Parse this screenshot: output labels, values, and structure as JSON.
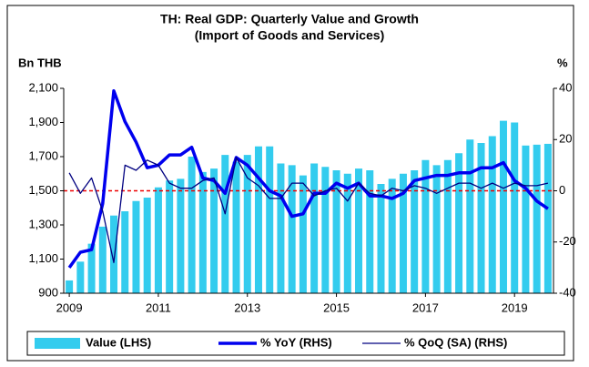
{
  "chart_data": {
    "type": "bar_line",
    "title": "TH: Real GDP: Quarterly Value and Growth",
    "subtitle": "(Import of Goods and Services)",
    "y_label": "Bn THB",
    "y2_label": "%",
    "categories": [
      "2009",
      null,
      null,
      null,
      null,
      null,
      null,
      null,
      "2011",
      null,
      null,
      null,
      null,
      null,
      null,
      null,
      "2013",
      null,
      null,
      null,
      null,
      null,
      null,
      null,
      "2015",
      null,
      null,
      null,
      null,
      null,
      null,
      null,
      "2017",
      null,
      null,
      null,
      null,
      null,
      null,
      null,
      "2019",
      null,
      null,
      null
    ],
    "series": [
      {
        "name": "Value (LHS)",
        "type": "bar",
        "color": "#33ccee",
        "values": [
          975,
          1085,
          1190,
          1290,
          1355,
          1380,
          1440,
          1460,
          1520,
          1560,
          1570,
          1700,
          1610,
          1630,
          1710,
          1670,
          1710,
          1760,
          1760,
          1660,
          1650,
          1590,
          1660,
          1640,
          1620,
          1600,
          1630,
          1620,
          1540,
          1570,
          1600,
          1620,
          1680,
          1650,
          1680,
          1720,
          1800,
          1780,
          1820,
          1910,
          1900,
          1765,
          1770,
          1775
        ]
      },
      {
        "name": "% YoY (RHS)",
        "type": "line",
        "axis": "y2",
        "color": "#0000ee",
        "width": 3.5,
        "values": [
          -30,
          -24,
          -23,
          -5,
          39,
          27,
          19,
          9,
          10,
          14,
          14,
          17,
          5,
          4,
          -1,
          13,
          10,
          5,
          0,
          -2,
          -10,
          -9,
          -1,
          -1,
          3,
          1,
          3,
          -2,
          -2,
          -3,
          -1,
          4,
          5,
          6,
          6,
          7,
          7,
          9,
          9,
          11,
          4,
          1,
          -4,
          -7
        ]
      },
      {
        "name": "% QoQ (SA) (RHS)",
        "type": "line",
        "axis": "y2",
        "color": "#000080",
        "width": 1.3,
        "values": [
          7,
          -1,
          5,
          -8,
          -28,
          10,
          8,
          12,
          10,
          3,
          1,
          1,
          4,
          5,
          -9,
          13,
          5,
          2,
          -3,
          -3,
          3,
          3,
          -2,
          0,
          1,
          -4,
          3,
          -1,
          -2,
          1,
          0,
          2,
          1,
          -1,
          1,
          3,
          3,
          1,
          3,
          1,
          3,
          2,
          2,
          3
        ]
      }
    ],
    "ylim": [
      900,
      2100
    ],
    "yticks": [
      {
        "value": 900,
        "label": "900"
      },
      {
        "value": 1100,
        "label": "1,100"
      },
      {
        "value": 1300,
        "label": "1,300"
      },
      {
        "value": 1500,
        "label": "1,500"
      },
      {
        "value": 1700,
        "label": "1,700"
      },
      {
        "value": 1900,
        "label": "1,900"
      },
      {
        "value": 2100,
        "label": "2,100"
      }
    ],
    "y2lim": [
      -40,
      40
    ],
    "y2ticks": [
      -40,
      -20,
      0,
      20,
      40
    ],
    "y2_reference": 0,
    "reference_color": "#ee0000",
    "grid": false,
    "legend": "bottom"
  }
}
